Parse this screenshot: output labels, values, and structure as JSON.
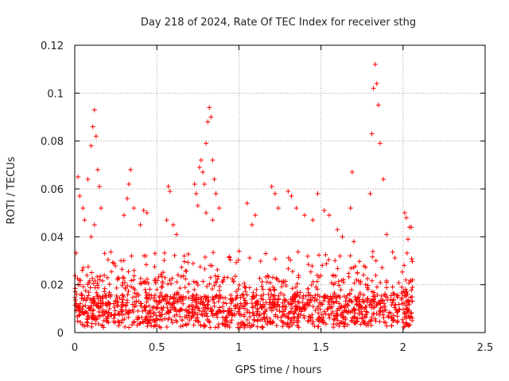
{
  "chart_data": {
    "type": "scatter",
    "title": "Day 218 of 2024, Rate Of TEC Index for receiver sthg",
    "xlabel": "GPS time / hours",
    "ylabel": "ROTI / TECUs",
    "xlim": [
      0,
      2.5
    ],
    "ylim": [
      0,
      0.12
    ],
    "x_ticks": [
      0,
      0.5,
      1,
      1.5,
      2,
      2.5
    ],
    "x_tick_labels": [
      "0",
      "0.5",
      "1",
      "1.5",
      "2",
      "2.5"
    ],
    "y_ticks": [
      0,
      0.02,
      0.04,
      0.06,
      0.08,
      0.1,
      0.12
    ],
    "y_tick_labels": [
      "0",
      "0.02",
      "0.04",
      "0.06",
      "0.08",
      "0.1",
      "0.12"
    ],
    "grid": true,
    "marker": "plus",
    "color": "#ff0000",
    "series": [
      {
        "name": "ROTI",
        "points": [
          [
            0.02,
            0.065
          ],
          [
            0.03,
            0.057
          ],
          [
            0.05,
            0.052
          ],
          [
            0.06,
            0.047
          ],
          [
            0.08,
            0.064
          ],
          [
            0.1,
            0.078
          ],
          [
            0.11,
            0.086
          ],
          [
            0.12,
            0.093
          ],
          [
            0.13,
            0.082
          ],
          [
            0.14,
            0.068
          ],
          [
            0.15,
            0.061
          ],
          [
            0.16,
            0.052
          ],
          [
            0.12,
            0.045
          ],
          [
            0.1,
            0.04
          ],
          [
            0.34,
            0.068
          ],
          [
            0.33,
            0.062
          ],
          [
            0.32,
            0.056
          ],
          [
            0.3,
            0.049
          ],
          [
            0.36,
            0.052
          ],
          [
            0.42,
            0.051
          ],
          [
            0.44,
            0.05
          ],
          [
            0.4,
            0.045
          ],
          [
            0.57,
            0.061
          ],
          [
            0.58,
            0.059
          ],
          [
            0.56,
            0.047
          ],
          [
            0.6,
            0.045
          ],
          [
            0.62,
            0.041
          ],
          [
            0.73,
            0.062
          ],
          [
            0.74,
            0.058
          ],
          [
            0.76,
            0.069
          ],
          [
            0.77,
            0.072
          ],
          [
            0.78,
            0.067
          ],
          [
            0.8,
            0.079
          ],
          [
            0.81,
            0.088
          ],
          [
            0.82,
            0.094
          ],
          [
            0.83,
            0.09
          ],
          [
            0.84,
            0.072
          ],
          [
            0.85,
            0.064
          ],
          [
            0.86,
            0.058
          ],
          [
            0.79,
            0.062
          ],
          [
            0.75,
            0.053
          ],
          [
            0.88,
            0.052
          ],
          [
            0.84,
            0.047
          ],
          [
            0.8,
            0.05
          ],
          [
            1.05,
            0.054
          ],
          [
            1.1,
            0.049
          ],
          [
            1.08,
            0.045
          ],
          [
            1.2,
            0.061
          ],
          [
            1.22,
            0.058
          ],
          [
            1.24,
            0.052
          ],
          [
            1.3,
            0.059
          ],
          [
            1.32,
            0.057
          ],
          [
            1.35,
            0.052
          ],
          [
            1.4,
            0.049
          ],
          [
            1.48,
            0.058
          ],
          [
            1.52,
            0.051
          ],
          [
            1.55,
            0.049
          ],
          [
            1.45,
            0.047
          ],
          [
            1.69,
            0.067
          ],
          [
            1.68,
            0.052
          ],
          [
            1.8,
            0.058
          ],
          [
            1.81,
            0.083
          ],
          [
            1.82,
            0.102
          ],
          [
            1.83,
            0.112
          ],
          [
            1.84,
            0.104
          ],
          [
            1.85,
            0.095
          ],
          [
            1.86,
            0.079
          ],
          [
            1.88,
            0.064
          ],
          [
            1.9,
            0.041
          ],
          [
            2.01,
            0.05
          ],
          [
            2.02,
            0.048
          ],
          [
            2.04,
            0.044
          ],
          [
            2.05,
            0.044
          ],
          [
            2.03,
            0.039
          ],
          [
            1.6,
            0.043
          ],
          [
            1.63,
            0.04
          ],
          [
            1.7,
            0.038
          ]
        ]
      }
    ]
  }
}
